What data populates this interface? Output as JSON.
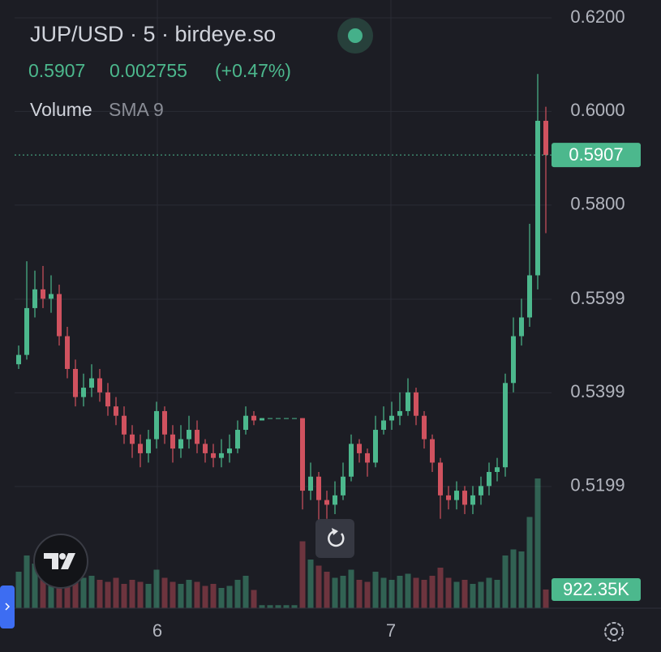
{
  "chart_data": {
    "type": "candlestick",
    "title": "JUP/USD · 5 · birdeye.so",
    "price": "0.5907",
    "change": "0.002755",
    "change_pct": "(+0.47%)",
    "open": [
      0.546,
      0.548,
      0.558,
      0.562,
      0.56,
      0.561,
      0.552,
      0.545,
      0.539,
      0.541,
      0.543,
      0.54,
      0.537,
      0.535,
      0.531,
      0.529,
      0.527,
      0.53,
      0.536,
      0.531,
      0.528,
      0.53,
      0.532,
      0.529,
      0.527,
      0.526,
      0.527,
      0.528,
      0.532,
      0.535,
      0.534,
      0.5345,
      0.5345,
      0.5345,
      0.5345,
      0.5345,
      0.519,
      0.522,
      0.517,
      0.516,
      0.518,
      0.522,
      0.529,
      0.527,
      0.525,
      0.532,
      0.534,
      0.535,
      0.536,
      0.54,
      0.535,
      0.53,
      0.525,
      0.518,
      0.517,
      0.519,
      0.516,
      0.518,
      0.52,
      0.523,
      0.524,
      0.542,
      0.552,
      0.556,
      0.565,
      0.598
    ],
    "high": [
      0.55,
      0.568,
      0.566,
      0.567,
      0.565,
      0.563,
      0.554,
      0.547,
      0.544,
      0.546,
      0.545,
      0.542,
      0.539,
      0.537,
      0.533,
      0.531,
      0.532,
      0.538,
      0.537,
      0.533,
      0.533,
      0.535,
      0.534,
      0.53,
      0.529,
      0.53,
      0.531,
      0.534,
      0.537,
      0.536,
      0.5345,
      0.5345,
      0.5345,
      0.5345,
      0.5345,
      0.5345,
      0.525,
      0.523,
      0.519,
      0.521,
      0.525,
      0.531,
      0.53,
      0.528,
      0.535,
      0.537,
      0.538,
      0.54,
      0.543,
      0.541,
      0.536,
      0.531,
      0.526,
      0.52,
      0.521,
      0.52,
      0.52,
      0.522,
      0.525,
      0.526,
      0.544,
      0.556,
      0.56,
      0.576,
      0.608,
      0.601
    ],
    "low": [
      0.545,
      0.547,
      0.556,
      0.558,
      0.557,
      0.55,
      0.543,
      0.537,
      0.537,
      0.539,
      0.538,
      0.535,
      0.533,
      0.529,
      0.526,
      0.524,
      0.525,
      0.528,
      0.529,
      0.525,
      0.526,
      0.528,
      0.527,
      0.525,
      0.524,
      0.524,
      0.525,
      0.527,
      0.531,
      0.533,
      0.534,
      0.5345,
      0.5345,
      0.5345,
      0.5345,
      0.515,
      0.517,
      0.511,
      0.513,
      0.514,
      0.517,
      0.521,
      0.525,
      0.522,
      0.524,
      0.531,
      0.532,
      0.533,
      0.535,
      0.533,
      0.528,
      0.523,
      0.513,
      0.515,
      0.515,
      0.514,
      0.514,
      0.516,
      0.518,
      0.521,
      0.522,
      0.54,
      0.55,
      0.554,
      0.562,
      0.574
    ],
    "close": [
      0.548,
      0.558,
      0.562,
      0.56,
      0.561,
      0.552,
      0.545,
      0.539,
      0.541,
      0.543,
      0.54,
      0.537,
      0.535,
      0.531,
      0.529,
      0.527,
      0.53,
      0.536,
      0.531,
      0.528,
      0.53,
      0.532,
      0.529,
      0.527,
      0.526,
      0.527,
      0.528,
      0.532,
      0.535,
      0.534,
      0.5345,
      0.5345,
      0.5345,
      0.5345,
      0.5345,
      0.519,
      0.522,
      0.517,
      0.516,
      0.518,
      0.522,
      0.529,
      0.527,
      0.525,
      0.532,
      0.534,
      0.535,
      0.536,
      0.54,
      0.535,
      0.53,
      0.525,
      0.518,
      0.517,
      0.519,
      0.516,
      0.518,
      0.52,
      0.523,
      0.524,
      0.542,
      0.552,
      0.556,
      0.565,
      0.598,
      0.5907
    ],
    "up_color": "#4cb88d",
    "down_color": "#d0525f",
    "volume": {
      "name": "Volume",
      "indicator": "SMA 9",
      "last_label": "922.35K",
      "values": [
        1800000,
        2600000,
        2200000,
        1900000,
        2000000,
        2300000,
        1700000,
        1900000,
        1500000,
        1600000,
        1400000,
        1300000,
        1500000,
        1200000,
        1400000,
        1300000,
        1200000,
        1900000,
        1500000,
        1300000,
        1200000,
        1400000,
        1300000,
        1100000,
        1200000,
        1000000,
        1100000,
        1400000,
        1600000,
        900000,
        150000,
        150000,
        150000,
        150000,
        150000,
        3300000,
        2400000,
        2100000,
        1800000,
        1500000,
        1600000,
        1900000,
        1400000,
        1300000,
        1800000,
        1500000,
        1400000,
        1600000,
        1700000,
        1500000,
        1400000,
        1600000,
        2000000,
        1500000,
        1300000,
        1400000,
        1200000,
        1300000,
        1500000,
        1400000,
        2600000,
        2900000,
        2800000,
        4500000,
        6400000,
        922350
      ],
      "ylim": [
        0,
        30000000
      ]
    },
    "ylim": [
      0.4939,
      0.6238
    ],
    "yticks": [
      {
        "value": 0.62,
        "label": "0.6200"
      },
      {
        "value": 0.6,
        "label": "0.6000"
      },
      {
        "value": 0.58,
        "label": "0.5800"
      },
      {
        "value": 0.5599,
        "label": "0.5599"
      },
      {
        "value": 0.5399,
        "label": "0.5399"
      },
      {
        "value": 0.5199,
        "label": "0.5199"
      }
    ],
    "xlim": [
      0,
      66.2
    ],
    "xticks": [
      {
        "value": 17.6,
        "label": "6"
      },
      {
        "value": 46.4,
        "label": "7"
      }
    ],
    "grid": true
  }
}
